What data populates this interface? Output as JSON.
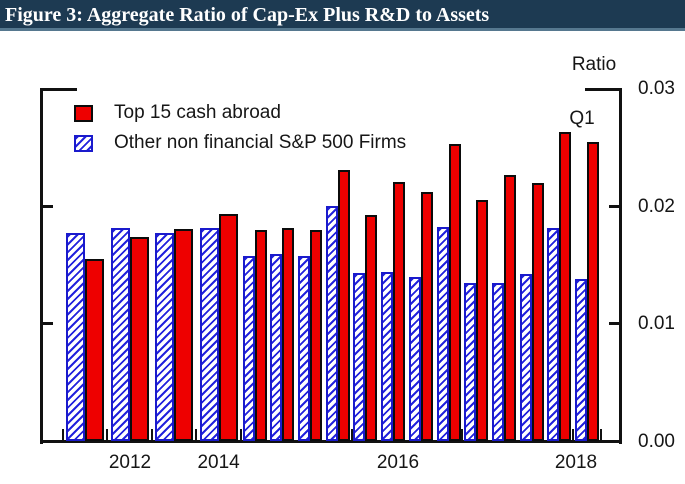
{
  "figure": {
    "title": "Figure 3: Aggregate Ratio of Cap-Ex Plus R&D to Assets",
    "title_bar_bg": "#1d3a52",
    "title_bar_accent": "#56788f",
    "title_color": "#ffffff"
  },
  "chart_data": {
    "type": "bar",
    "title": "Aggregate Ratio of Cap-Ex Plus R&D to Assets",
    "right_axis_title": "Ratio",
    "annotation_last_observation": "Q1",
    "grid": false,
    "legend_position": "inside-top-left",
    "ylim": [
      0,
      0.03
    ],
    "y_tick_values": [
      0,
      0.01,
      0.02,
      0.03
    ],
    "y_tick_labels": [
      "0.00",
      "0.01",
      "0.02",
      "0.03"
    ],
    "x_tick_labels": [
      "2012",
      "2014",
      "2016",
      "2018"
    ],
    "categories": [
      "2011",
      "2012",
      "2013",
      "2014",
      "2015Q1",
      "2015Q2",
      "2015Q3",
      "2015Q4",
      "2016Q1",
      "2016Q2",
      "2016Q3",
      "2016Q4",
      "2017Q1",
      "2017Q2",
      "2017Q3",
      "2017Q4",
      "2018Q1"
    ],
    "frequency": {
      "annual_through": "2014",
      "quarterly_from": "2015Q1",
      "last_observation": "2018Q1"
    },
    "series": [
      {
        "name": "Top 15 cash abroad",
        "style": "solid",
        "color": "#ee0000",
        "outline": "#0b0b0b",
        "values": [
          0.0155,
          0.0173,
          0.018,
          0.0193,
          0.0179,
          0.0181,
          0.0179,
          0.023,
          0.0192,
          0.022,
          0.0212,
          0.0252,
          0.0205,
          0.0226,
          0.0219,
          0.0263,
          0.0254
        ]
      },
      {
        "name": "Other non financial S&P 500 Firms",
        "style": "hatched-diagonal",
        "color": "#2222dd",
        "outline": "#1a1acc",
        "values": [
          0.0177,
          0.0181,
          0.0177,
          0.0181,
          0.0157,
          0.0159,
          0.0157,
          0.02,
          0.0143,
          0.0144,
          0.0139,
          0.0182,
          0.0134,
          0.0134,
          0.0142,
          0.0181,
          0.0138
        ]
      }
    ]
  }
}
